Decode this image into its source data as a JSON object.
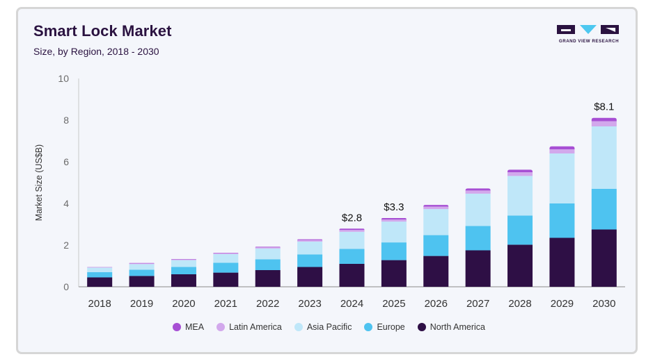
{
  "header": {
    "title": "Smart Lock Market",
    "subtitle": "Size, by Region, 2018 - 2030",
    "logo_text": "GRAND VIEW RESEARCH"
  },
  "colors": {
    "background": "#f4f6fb",
    "title": "#2a1240",
    "logo": "#2a1240",
    "logo_accent": "#4dc8f0"
  },
  "chart_data": {
    "type": "bar",
    "stacked": true,
    "categories": [
      "2018",
      "2019",
      "2020",
      "2021",
      "2022",
      "2023",
      "2024",
      "2025",
      "2026",
      "2027",
      "2028",
      "2029",
      "2030"
    ],
    "ylabel": "Market Size (US$B)",
    "ylim": [
      0,
      10
    ],
    "yticks": [
      0,
      2,
      4,
      6,
      8,
      10
    ],
    "grid": false,
    "legend_position": "bottom",
    "series": [
      {
        "name": "North America",
        "color": "#2e0f45",
        "values": [
          0.45,
          0.52,
          0.6,
          0.68,
          0.8,
          0.95,
          1.1,
          1.28,
          1.48,
          1.75,
          2.02,
          2.35,
          2.75
        ]
      },
      {
        "name": "Europe",
        "color": "#4ec3f0",
        "values": [
          0.25,
          0.3,
          0.35,
          0.47,
          0.52,
          0.6,
          0.72,
          0.85,
          1.0,
          1.17,
          1.4,
          1.65,
          1.95
        ]
      },
      {
        "name": "Asia Pacific",
        "color": "#bfe7f9",
        "values": [
          0.22,
          0.27,
          0.33,
          0.42,
          0.52,
          0.62,
          0.82,
          1.0,
          1.25,
          1.55,
          1.9,
          2.4,
          3.0
        ]
      },
      {
        "name": "Latin America",
        "color": "#d2a8ec",
        "values": [
          0.02,
          0.03,
          0.03,
          0.04,
          0.05,
          0.07,
          0.09,
          0.1,
          0.12,
          0.15,
          0.18,
          0.2,
          0.25
        ]
      },
      {
        "name": "MEA",
        "color": "#a74fd4",
        "values": [
          0.01,
          0.02,
          0.02,
          0.02,
          0.03,
          0.04,
          0.06,
          0.07,
          0.08,
          0.1,
          0.12,
          0.14,
          0.16
        ]
      }
    ],
    "annotations": [
      {
        "category": "2024",
        "text": "$2.8"
      },
      {
        "category": "2025",
        "text": "$3.3"
      },
      {
        "category": "2030",
        "text": "$8.1"
      }
    ],
    "legend_order": [
      "MEA",
      "Latin America",
      "Asia Pacific",
      "Europe",
      "North America"
    ]
  }
}
